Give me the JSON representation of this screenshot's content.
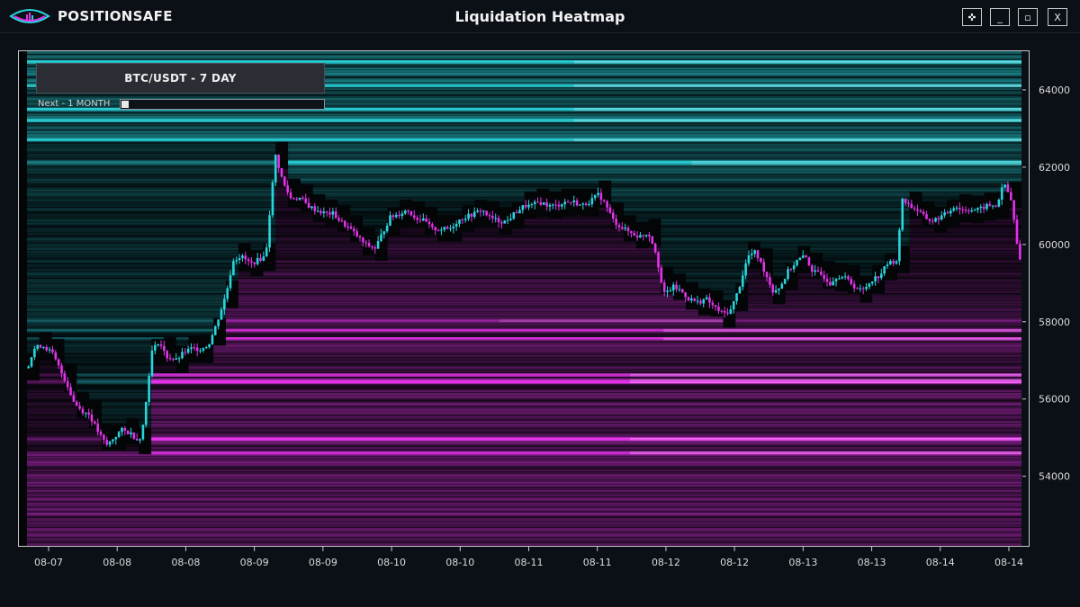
{
  "app": {
    "brand": "POSITIONSAFE",
    "window_title": "Liquidation Heatmap",
    "window_buttons": [
      "✜",
      "_",
      "▫",
      "X"
    ],
    "accent_up": "#2ad4dc",
    "accent_down": "#e233e8"
  },
  "controls": {
    "pair_label": "BTC/USDT - 7 DAY",
    "next_label": "Next - 1 MONTH",
    "next_progress": 0
  },
  "chart_data": {
    "type": "heatmap",
    "title": "Liquidation Heatmap",
    "x_tick_labels": [
      "08-07",
      "08-08",
      "08-08",
      "08-09",
      "08-09",
      "08-10",
      "08-10",
      "08-11",
      "08-11",
      "08-12",
      "08-12",
      "08-13",
      "08-13",
      "08-14",
      "08-14"
    ],
    "y_ticks": [
      54000,
      56000,
      58000,
      60000,
      62000,
      64000
    ],
    "ylim": [
      52200,
      65000
    ],
    "candles_close_path": [
      [
        0.0,
        56800
      ],
      [
        0.3,
        57300
      ],
      [
        0.6,
        57400
      ],
      [
        1.0,
        57200
      ],
      [
        1.3,
        56800
      ],
      [
        1.6,
        56400
      ],
      [
        1.9,
        55900
      ],
      [
        2.2,
        55700
      ],
      [
        2.5,
        55600
      ],
      [
        2.9,
        55100
      ],
      [
        3.2,
        54800
      ],
      [
        3.5,
        55000
      ],
      [
        3.8,
        55200
      ],
      [
        4.2,
        55100
      ],
      [
        4.5,
        54900
      ],
      [
        4.7,
        55400
      ],
      [
        5.0,
        57200
      ],
      [
        5.3,
        57500
      ],
      [
        5.6,
        57100
      ],
      [
        6.0,
        57000
      ],
      [
        6.3,
        57200
      ],
      [
        6.6,
        57300
      ],
      [
        7.0,
        57300
      ],
      [
        7.3,
        57400
      ],
      [
        7.6,
        57900
      ],
      [
        8.0,
        58700
      ],
      [
        8.3,
        59600
      ],
      [
        8.6,
        59700
      ],
      [
        9.0,
        59500
      ],
      [
        9.3,
        59600
      ],
      [
        9.6,
        59700
      ],
      [
        9.8,
        61100
      ],
      [
        10.0,
        62300
      ],
      [
        10.3,
        61600
      ],
      [
        10.6,
        61200
      ],
      [
        11.0,
        61200
      ],
      [
        11.3,
        61000
      ],
      [
        11.6,
        60900
      ],
      [
        12.0,
        60800
      ],
      [
        12.3,
        60800
      ],
      [
        12.6,
        60600
      ],
      [
        13.0,
        60400
      ],
      [
        13.3,
        60200
      ],
      [
        13.6,
        60000
      ],
      [
        14.0,
        59900
      ],
      [
        14.3,
        60300
      ],
      [
        14.6,
        60700
      ],
      [
        15.0,
        60800
      ],
      [
        15.3,
        60900
      ],
      [
        15.6,
        60700
      ],
      [
        16.0,
        60600
      ],
      [
        16.3,
        60400
      ],
      [
        16.6,
        60400
      ],
      [
        17.0,
        60400
      ],
      [
        17.3,
        60600
      ],
      [
        17.6,
        60700
      ],
      [
        18.0,
        60800
      ],
      [
        18.3,
        60900
      ],
      [
        18.6,
        60700
      ],
      [
        19.0,
        60600
      ],
      [
        19.3,
        60600
      ],
      [
        19.6,
        60800
      ],
      [
        20.0,
        61000
      ],
      [
        20.3,
        61000
      ],
      [
        20.6,
        61100
      ],
      [
        21.0,
        61000
      ],
      [
        21.3,
        61000
      ],
      [
        21.6,
        61100
      ],
      [
        22.0,
        61100
      ],
      [
        22.3,
        61000
      ],
      [
        22.6,
        61100
      ],
      [
        23.0,
        61300
      ],
      [
        23.3,
        61000
      ],
      [
        23.6,
        60600
      ],
      [
        24.0,
        60400
      ],
      [
        24.3,
        60300
      ],
      [
        24.6,
        60200
      ],
      [
        25.0,
        60300
      ],
      [
        25.3,
        59800
      ],
      [
        25.6,
        58700
      ],
      [
        26.0,
        58900
      ],
      [
        26.3,
        58800
      ],
      [
        26.6,
        58600
      ],
      [
        27.0,
        58500
      ],
      [
        27.3,
        58600
      ],
      [
        27.6,
        58400
      ],
      [
        28.0,
        58200
      ],
      [
        28.3,
        58300
      ],
      [
        28.6,
        58800
      ],
      [
        29.0,
        59700
      ],
      [
        29.3,
        59800
      ],
      [
        29.6,
        59400
      ],
      [
        30.0,
        58800
      ],
      [
        30.3,
        58900
      ],
      [
        30.6,
        59300
      ],
      [
        31.0,
        59600
      ],
      [
        31.3,
        59700
      ],
      [
        31.6,
        59300
      ],
      [
        32.0,
        59200
      ],
      [
        32.3,
        59000
      ],
      [
        32.6,
        59200
      ],
      [
        33.0,
        59100
      ],
      [
        33.3,
        58900
      ],
      [
        33.6,
        58800
      ],
      [
        34.0,
        59100
      ],
      [
        34.3,
        59200
      ],
      [
        34.6,
        59500
      ],
      [
        35.0,
        59600
      ],
      [
        35.2,
        61200
      ],
      [
        35.5,
        61000
      ],
      [
        35.8,
        60900
      ],
      [
        36.1,
        60700
      ],
      [
        36.4,
        60600
      ],
      [
        36.7,
        60700
      ],
      [
        37.0,
        60800
      ],
      [
        37.3,
        61000
      ],
      [
        37.6,
        60900
      ],
      [
        38.0,
        60900
      ],
      [
        38.3,
        60900
      ],
      [
        38.6,
        61000
      ],
      [
        39.0,
        61000
      ],
      [
        39.3,
        61600
      ],
      [
        39.6,
        61100
      ],
      [
        39.9,
        59600
      ]
    ],
    "candles_x_domain": [
      0,
      40
    ],
    "liquidation_bands": {
      "long_side_color": "#e233e8",
      "short_side_color": "#2ad4dc",
      "hot_levels": [
        64700,
        64100,
        63500,
        63200,
        62700,
        62100,
        58000,
        57750,
        57550,
        56600,
        56450,
        54950,
        54600
      ]
    }
  }
}
